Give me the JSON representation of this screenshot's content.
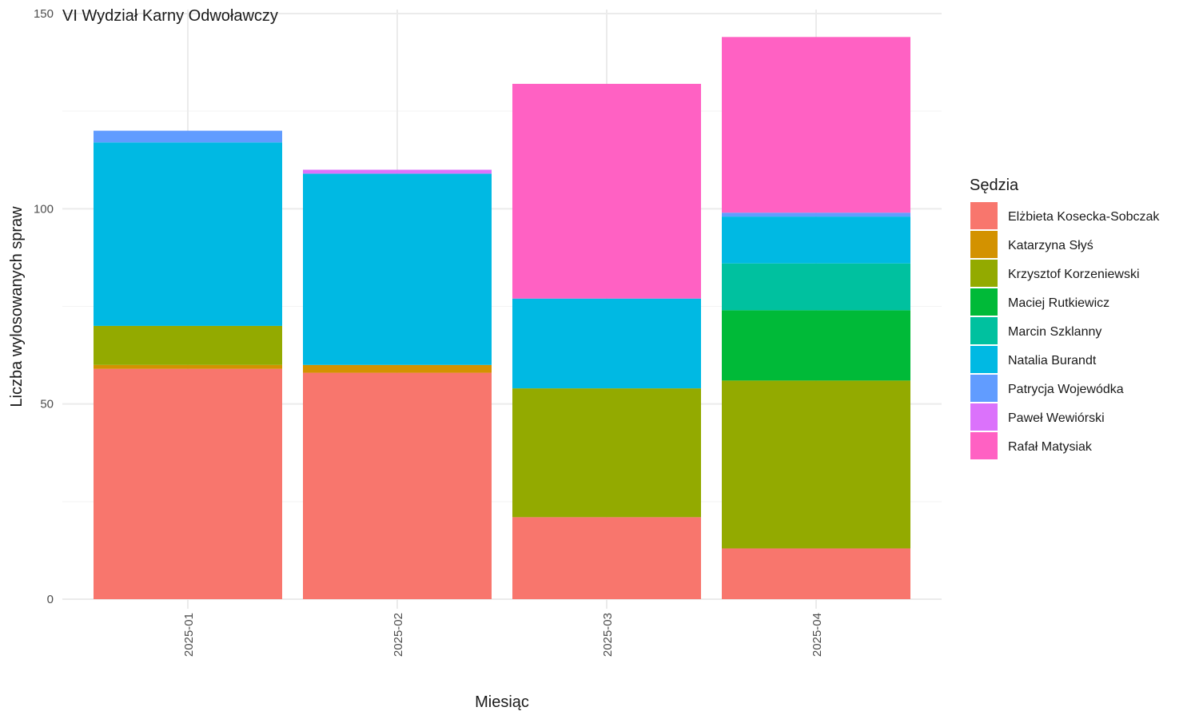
{
  "chart_data": {
    "type": "bar",
    "stacked": true,
    "title": "VI Wydział Karny Odwoławczy",
    "xlabel": "Miesiąc",
    "ylabel": "Liczba wylosowanych spraw",
    "legend_title": "Sędzia",
    "legend_position": "right",
    "grid": true,
    "ylim": [
      0,
      150
    ],
    "yticks": [
      0,
      50,
      100,
      150
    ],
    "categories": [
      "2025-01",
      "2025-02",
      "2025-03",
      "2025-04"
    ],
    "series": [
      {
        "name": "Elżbieta Kosecka-Sobczak",
        "color": "#F8766D",
        "values": [
          59,
          58,
          21,
          13
        ]
      },
      {
        "name": "Katarzyna Słyś",
        "color": "#D39200",
        "values": [
          1,
          2,
          0,
          0
        ]
      },
      {
        "name": "Krzysztof Korzeniewski",
        "color": "#93AA00",
        "values": [
          10,
          0,
          33,
          43
        ]
      },
      {
        "name": "Maciej Rutkiewicz",
        "color": "#00BA38",
        "values": [
          0,
          0,
          0,
          18
        ]
      },
      {
        "name": "Marcin Szklanny",
        "color": "#00C19F",
        "values": [
          0,
          0,
          0,
          12
        ]
      },
      {
        "name": "Natalia Burandt",
        "color": "#00B9E3",
        "values": [
          47,
          49,
          23,
          12
        ]
      },
      {
        "name": "Patrycja Wojewódka",
        "color": "#619CFF",
        "values": [
          3,
          0,
          0,
          1
        ]
      },
      {
        "name": "Paweł Wewiórski",
        "color": "#DB72FB",
        "values": [
          0,
          1,
          0,
          0
        ]
      },
      {
        "name": "Rafał Matysiak",
        "color": "#FF61C3",
        "values": [
          0,
          0,
          55,
          45
        ]
      }
    ]
  }
}
